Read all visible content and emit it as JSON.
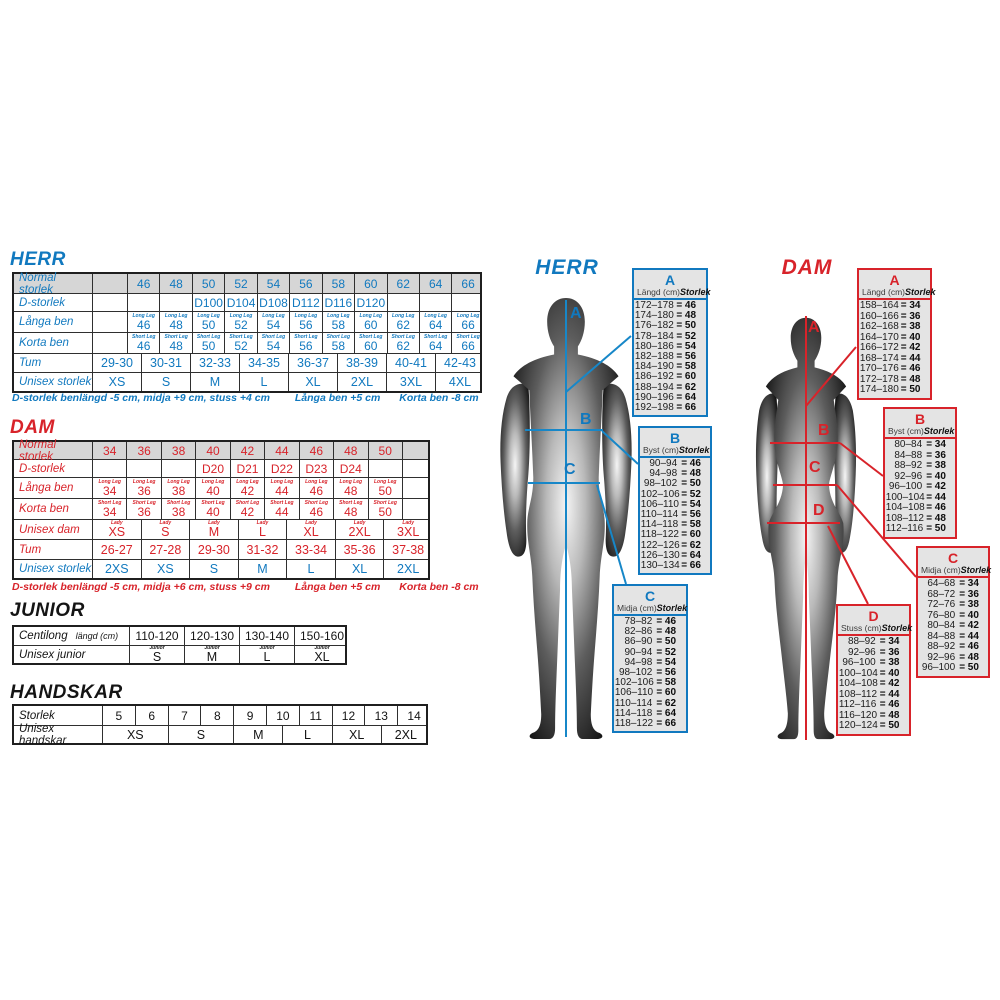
{
  "colors": {
    "blue": "#1179bf",
    "red": "#d8232a",
    "dark": "#141414"
  },
  "sections": {
    "herr": {
      "heading": "HERR",
      "rows": [
        {
          "label": "Normal storlek",
          "type": "cols",
          "header": true,
          "cells": [
            "",
            "46",
            "48",
            "50",
            "52",
            "54",
            "56",
            "58",
            "60",
            "62",
            "64",
            "66"
          ]
        },
        {
          "label": "D-storlek",
          "type": "cols",
          "cells": [
            "",
            "",
            "",
            "D100",
            "D104",
            "D108",
            "D112",
            "D116",
            "D120",
            "",
            "",
            ""
          ]
        },
        {
          "label": "Långa ben",
          "type": "cols",
          "sub": "Long Leg",
          "cells": [
            "",
            "46",
            "48",
            "50",
            "52",
            "54",
            "56",
            "58",
            "60",
            "62",
            "64",
            "66"
          ]
        },
        {
          "label": "Korta ben",
          "type": "cols",
          "sub": "Short Leg",
          "cells": [
            "",
            "46",
            "48",
            "50",
            "52",
            "54",
            "56",
            "58",
            "60",
            "62",
            "64",
            "66"
          ]
        },
        {
          "label": "Tum",
          "type": "span",
          "cells": [
            "29-30",
            "30-31",
            "32-33",
            "34-35",
            "36-37",
            "38-39",
            "40-41",
            "42-43"
          ]
        },
        {
          "label": "Unisex storlek",
          "type": "span",
          "cells": [
            "XS",
            "S",
            "M",
            "L",
            "XL",
            "2XL",
            "3XL",
            "4XL"
          ]
        }
      ],
      "footnotes": [
        "D-storlek benlängd -5 cm, midja +9 cm, stuss +4 cm",
        "Långa ben +5 cm",
        "Korta ben -8 cm"
      ]
    },
    "dam": {
      "heading": "DAM",
      "rows": [
        {
          "label": "Normal storlek",
          "type": "cols",
          "header": true,
          "cells": [
            "34",
            "36",
            "38",
            "40",
            "42",
            "44",
            "46",
            "48",
            "50",
            ""
          ]
        },
        {
          "label": "D-storlek",
          "type": "cols",
          "cells": [
            "",
            "",
            "",
            "D20",
            "D21",
            "D22",
            "D23",
            "D24",
            "",
            ""
          ]
        },
        {
          "label": "Långa ben",
          "type": "cols",
          "sub": "Long Leg",
          "cells": [
            "34",
            "36",
            "38",
            "40",
            "42",
            "44",
            "46",
            "48",
            "50",
            ""
          ]
        },
        {
          "label": "Korta ben",
          "type": "cols",
          "sub": "Short Leg",
          "cells": [
            "34",
            "36",
            "38",
            "40",
            "42",
            "44",
            "46",
            "48",
            "50",
            ""
          ]
        },
        {
          "label": "Unisex dam",
          "type": "span",
          "sub": "Lady",
          "cells": [
            "XS",
            "S",
            "M",
            "L",
            "XL",
            "2XL",
            "3XL"
          ]
        },
        {
          "label": "Tum",
          "type": "span",
          "cells": [
            "26-27",
            "27-28",
            "29-30",
            "31-32",
            "33-34",
            "35-36",
            "37-38"
          ]
        },
        {
          "label": "Unisex storlek",
          "type": "span",
          "color": "blue",
          "cells": [
            "2XS",
            "XS",
            "S",
            "M",
            "L",
            "XL",
            "2XL"
          ]
        }
      ],
      "footnotes": [
        "D-storlek benlängd -5 cm, midja +6 cm, stuss +9 cm",
        "Långa ben +5 cm",
        "Korta ben -8 cm"
      ]
    },
    "junior": {
      "heading": "JUNIOR",
      "rows": [
        {
          "label": "Centilong",
          "label2": "längd (cm)",
          "type": "cols",
          "cells": [
            "110-120",
            "120-130",
            "130-140",
            "150-160"
          ]
        },
        {
          "label": "Unisex junior",
          "type": "span",
          "sub": "Junior",
          "cells": [
            "S",
            "M",
            "L",
            "XL"
          ]
        }
      ]
    },
    "handskar": {
      "heading": "HANDSKAR",
      "rows": [
        {
          "label": "Storlek",
          "type": "cols",
          "cells": [
            "5",
            "6",
            "7",
            "8",
            "9",
            "10",
            "11",
            "12",
            "13",
            "14"
          ]
        },
        {
          "label": "Unisex handskar",
          "type": "span",
          "cells": [
            "XS",
            "S",
            "M",
            "L",
            "XL",
            "2XL"
          ]
        }
      ]
    }
  },
  "figures": {
    "herr": {
      "title": "HERR",
      "letters": [
        "A",
        "B",
        "C"
      ]
    },
    "dam": {
      "title": "DAM",
      "letters": [
        "A",
        "B",
        "C",
        "D"
      ]
    }
  },
  "measure_tables": {
    "herr_a": {
      "letter": "A",
      "measure": "Längd (cm)",
      "size_label": "Storlek",
      "rows": [
        [
          "172–178",
          "46"
        ],
        [
          "174–180",
          "48"
        ],
        [
          "176–182",
          "50"
        ],
        [
          "178–184",
          "52"
        ],
        [
          "180–186",
          "54"
        ],
        [
          "182–188",
          "56"
        ],
        [
          "184–190",
          "58"
        ],
        [
          "186–192",
          "60"
        ],
        [
          "188–194",
          "62"
        ],
        [
          "190–196",
          "64"
        ],
        [
          "192–198",
          "66"
        ]
      ]
    },
    "herr_b": {
      "letter": "B",
      "measure": "Byst (cm)",
      "size_label": "Storlek",
      "rows": [
        [
          "90–94",
          "46"
        ],
        [
          "94–98",
          "48"
        ],
        [
          "98–102",
          "50"
        ],
        [
          "102–106",
          "52"
        ],
        [
          "106–110",
          "54"
        ],
        [
          "110–114",
          "56"
        ],
        [
          "114–118",
          "58"
        ],
        [
          "118–122",
          "60"
        ],
        [
          "122–126",
          "62"
        ],
        [
          "126–130",
          "64"
        ],
        [
          "130–134",
          "66"
        ]
      ]
    },
    "herr_c": {
      "letter": "C",
      "measure": "Midja (cm)",
      "size_label": "Storlek",
      "rows": [
        [
          "78–82",
          "46"
        ],
        [
          "82–86",
          "48"
        ],
        [
          "86–90",
          "50"
        ],
        [
          "90–94",
          "52"
        ],
        [
          "94–98",
          "54"
        ],
        [
          "98–102",
          "56"
        ],
        [
          "102–106",
          "58"
        ],
        [
          "106–110",
          "60"
        ],
        [
          "110–114",
          "62"
        ],
        [
          "114–118",
          "64"
        ],
        [
          "118–122",
          "66"
        ]
      ]
    },
    "dam_a": {
      "letter": "A",
      "measure": "Längd (cm)",
      "size_label": "Storlek",
      "rows": [
        [
          "158–164",
          "34"
        ],
        [
          "160–166",
          "36"
        ],
        [
          "162–168",
          "38"
        ],
        [
          "164–170",
          "40"
        ],
        [
          "166–172",
          "42"
        ],
        [
          "168–174",
          "44"
        ],
        [
          "170–176",
          "46"
        ],
        [
          "172–178",
          "48"
        ],
        [
          "174–180",
          "50"
        ]
      ]
    },
    "dam_b": {
      "letter": "B",
      "measure": "Byst (cm)",
      "size_label": "Storlek",
      "rows": [
        [
          "80–84",
          "34"
        ],
        [
          "84–88",
          "36"
        ],
        [
          "88–92",
          "38"
        ],
        [
          "92–96",
          "40"
        ],
        [
          "96–100",
          "42"
        ],
        [
          "100–104",
          "44"
        ],
        [
          "104–108",
          "46"
        ],
        [
          "108–112",
          "48"
        ],
        [
          "112–116",
          "50"
        ]
      ]
    },
    "dam_c": {
      "letter": "C",
      "measure": "Midja (cm)",
      "size_label": "Storlek",
      "rows": [
        [
          "64–68",
          "34"
        ],
        [
          "68–72",
          "36"
        ],
        [
          "72–76",
          "38"
        ],
        [
          "76–80",
          "40"
        ],
        [
          "80–84",
          "42"
        ],
        [
          "84–88",
          "44"
        ],
        [
          "88–92",
          "46"
        ],
        [
          "92–96",
          "48"
        ],
        [
          "96–100",
          "50"
        ]
      ]
    },
    "dam_d": {
      "letter": "D",
      "measure": "Stuss (cm)",
      "size_label": "Storlek",
      "rows": [
        [
          "88–92",
          "34"
        ],
        [
          "92–96",
          "36"
        ],
        [
          "96–100",
          "38"
        ],
        [
          "100–104",
          "40"
        ],
        [
          "104–108",
          "42"
        ],
        [
          "108–112",
          "44"
        ],
        [
          "112–116",
          "46"
        ],
        [
          "116–120",
          "48"
        ],
        [
          "120–124",
          "50"
        ]
      ]
    }
  }
}
